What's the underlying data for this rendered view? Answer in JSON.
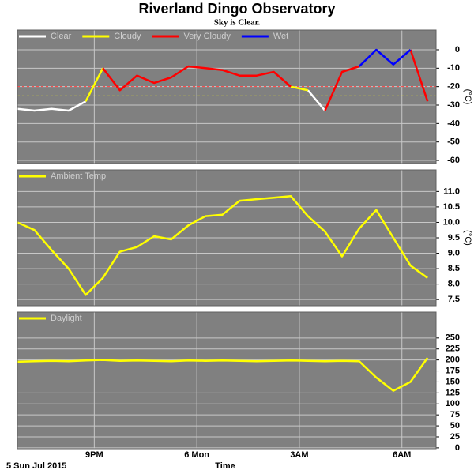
{
  "title": "Riverland Dingo Observatory",
  "subtitle": "Sky is Clear.",
  "x_label": "Time",
  "date_label": "5 Sun Jul 2015",
  "chart_data": [
    {
      "type": "line",
      "y_label": "(°C)",
      "grid": true,
      "x": [
        18.75,
        19.25,
        19.75,
        20.25,
        20.75,
        21.25,
        21.75,
        22.25,
        22.75,
        23.25,
        23.75,
        24.25,
        24.75,
        25.25,
        25.75,
        26.25,
        26.75,
        27.25,
        27.75,
        28.25,
        28.75,
        29.25,
        29.75,
        30.25,
        30.75
      ],
      "xlim": [
        18.75,
        31
      ],
      "xticks": [
        {
          "value": 21,
          "label": "9PM"
        },
        {
          "value": 24,
          "label": "6 Mon"
        },
        {
          "value": 27,
          "label": "3AM"
        },
        {
          "value": 30,
          "label": "6AM"
        }
      ],
      "ylim": [
        -61.7,
        10.7
      ],
      "yticks": [
        0,
        -10,
        -20,
        -30,
        -40,
        -50,
        -60
      ],
      "thresholds": [
        {
          "value": -20,
          "color": "#ff4040"
        },
        {
          "value": -25,
          "color": "#ffff00"
        }
      ],
      "series": [
        {
          "name": "Clear",
          "color": "#ffffff",
          "values": [
            -32,
            -33,
            -32,
            -33,
            -28,
            null,
            null,
            null,
            null,
            null,
            null,
            null,
            null,
            null,
            null,
            null,
            null,
            -22,
            -33,
            null,
            null,
            null,
            null,
            null,
            null
          ]
        },
        {
          "name": "Cloudy",
          "color": "#ffff00",
          "values": [
            null,
            null,
            null,
            null,
            -28,
            -10,
            null,
            null,
            null,
            null,
            null,
            null,
            null,
            null,
            null,
            null,
            -20,
            -22,
            null,
            null,
            null,
            null,
            null,
            null,
            null
          ]
        },
        {
          "name": "Very Cloudy",
          "color": "#ff0000",
          "values": [
            null,
            null,
            null,
            null,
            null,
            -10,
            -22,
            -14,
            -18,
            -15,
            -9,
            -10,
            -11,
            -14,
            -14,
            -12,
            -20,
            null,
            -33,
            -12,
            -9,
            null,
            null,
            0,
            -28
          ]
        },
        {
          "name": "Wet",
          "color": "#0000ff",
          "values": [
            null,
            null,
            null,
            null,
            null,
            null,
            null,
            null,
            null,
            null,
            null,
            null,
            null,
            null,
            null,
            null,
            null,
            null,
            null,
            null,
            -9,
            0,
            -8,
            0,
            null
          ]
        }
      ]
    },
    {
      "type": "line",
      "y_label": "(°C)",
      "grid": true,
      "x": [
        18.75,
        19.25,
        19.75,
        20.25,
        20.75,
        21.25,
        21.75,
        22.25,
        22.75,
        23.25,
        23.75,
        24.25,
        24.75,
        25.25,
        25.75,
        26.25,
        26.75,
        27.25,
        27.75,
        28.25,
        28.75,
        29.25,
        29.75,
        30.25,
        30.75
      ],
      "xlim": [
        18.75,
        31
      ],
      "xticks": [
        {
          "value": 21,
          "label": "9PM"
        },
        {
          "value": 24,
          "label": "6 Mon"
        },
        {
          "value": 27,
          "label": "3AM"
        },
        {
          "value": 30,
          "label": "6AM"
        }
      ],
      "ylim": [
        7.3,
        11.7
      ],
      "yticks": [
        {
          "value": 11,
          "label": "11.0"
        },
        10.5,
        {
          "value": 10,
          "label": "10.0"
        },
        9.5,
        {
          "value": 9,
          "label": "9.0"
        },
        8.5,
        {
          "value": 8,
          "label": "8.0"
        },
        7.5
      ],
      "series": [
        {
          "name": "Ambient Temp",
          "color": "#ffff00",
          "values": [
            10.0,
            9.75,
            9.1,
            8.5,
            7.65,
            8.2,
            9.05,
            9.2,
            9.55,
            9.45,
            9.9,
            10.2,
            10.25,
            10.7,
            10.75,
            10.8,
            10.85,
            10.2,
            9.7,
            8.9,
            9.8,
            10.4,
            9.5,
            8.6,
            8.2
          ]
        }
      ]
    },
    {
      "type": "line",
      "grid": true,
      "x": [
        18.75,
        19.25,
        19.75,
        20.25,
        20.75,
        21.25,
        21.75,
        22.25,
        22.75,
        23.25,
        23.75,
        24.25,
        24.75,
        25.25,
        25.75,
        26.25,
        26.75,
        27.25,
        27.75,
        28.25,
        28.75,
        29.25,
        29.75,
        30.25,
        30.75
      ],
      "xlim": [
        18.75,
        31
      ],
      "xticks": [
        {
          "value": 21,
          "label": "9PM"
        },
        {
          "value": 24,
          "label": "6 Mon"
        },
        {
          "value": 27,
          "label": "3AM"
        },
        {
          "value": 30,
          "label": "6AM"
        }
      ],
      "ylim": [
        -2,
        309
      ],
      "yticks": [
        250,
        225,
        200,
        175,
        150,
        125,
        100,
        75,
        50,
        25,
        0
      ],
      "series": [
        {
          "name": "Daylight",
          "color": "#ffff00",
          "values": [
            196,
            197,
            198,
            197,
            199,
            200,
            198,
            199,
            198,
            197,
            199,
            198,
            199,
            198,
            197,
            198,
            199,
            198,
            197,
            198,
            197,
            160,
            130,
            150,
            205
          ]
        }
      ]
    }
  ]
}
